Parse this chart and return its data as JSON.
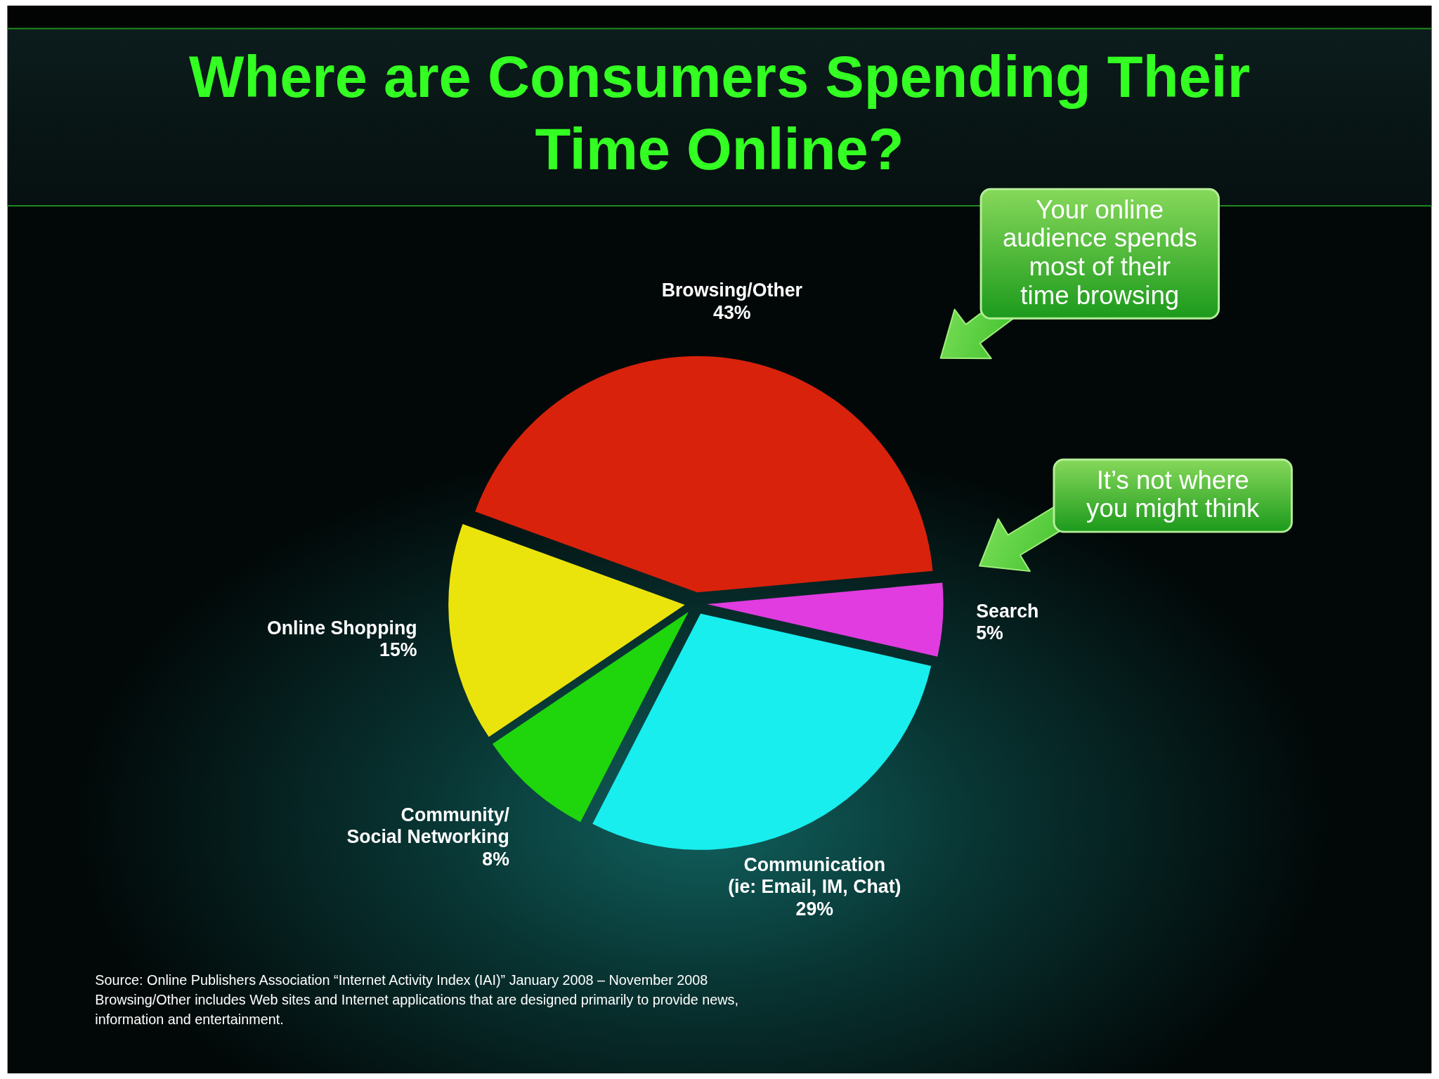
{
  "chart_data": {
    "type": "pie",
    "title": "Where are Consumers Spending Their Time Online?",
    "categories": [
      "Browsing/Other",
      "Search",
      "Communication (ie: Email, IM, Chat)",
      "Community/ Social Networking",
      "Online Shopping"
    ],
    "values": [
      43,
      5,
      29,
      8,
      15
    ],
    "value_labels": [
      "43%",
      "5%",
      "29%",
      "8%",
      "15%"
    ],
    "colors": [
      "#d8220c",
      "#e03ce0",
      "#18eeee",
      "#1fd60c",
      "#ebe40c"
    ],
    "annotations": [
      "Your online audience spends most of their time browsing",
      "It’s not where you might think",
      "Source: Online Publishers Association “Internet Activity Index (IAI)” January 2008 – November 2008",
      "Browsing/Other includes Web sites and Internet applications that are designed primarily to provide news, information and entertainment."
    ]
  }
}
